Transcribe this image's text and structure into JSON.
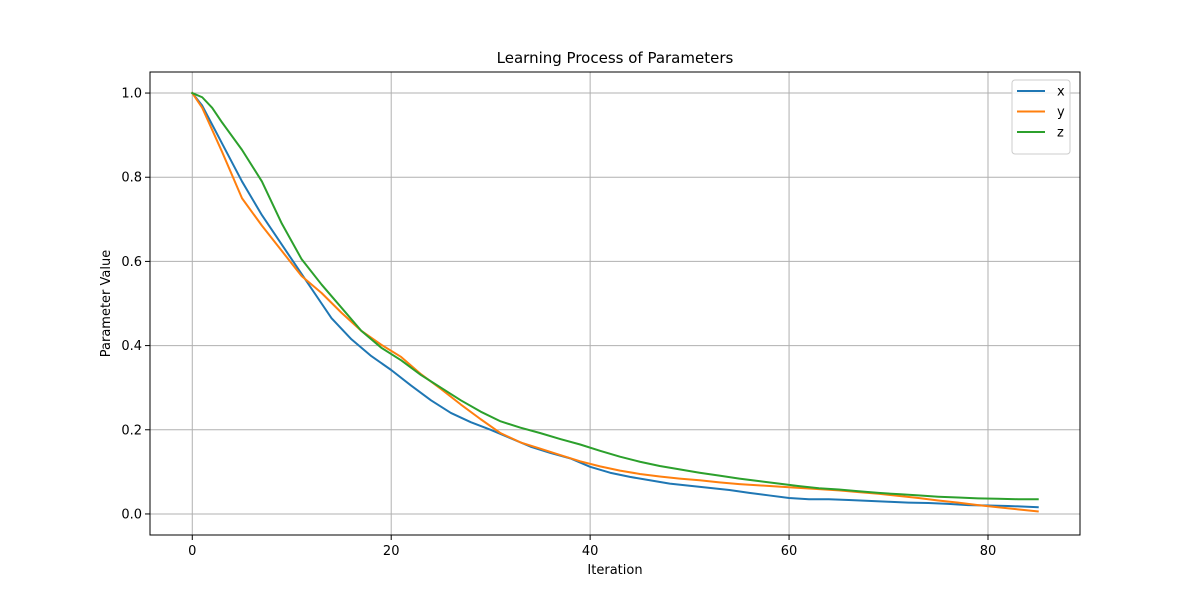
{
  "chart_data": {
    "type": "line",
    "title": "Learning Process of Parameters",
    "xlabel": "Iteration",
    "ylabel": "Parameter Value",
    "xlim": [
      -4.25,
      89.25
    ],
    "ylim": [
      -0.05,
      1.05
    ],
    "xticks": [
      0,
      20,
      40,
      60,
      80
    ],
    "yticks": [
      0.0,
      0.2,
      0.4,
      0.6,
      0.8,
      1.0
    ],
    "xtick_labels": [
      "0",
      "20",
      "40",
      "60",
      "80"
    ],
    "ytick_labels": [
      "0.0",
      "0.2",
      "0.4",
      "0.6",
      "0.8",
      "1.0"
    ],
    "grid": true,
    "legend_position": "top-right",
    "series": [
      {
        "name": "x",
        "color": "#1f77b4",
        "points": [
          [
            0,
            1.0
          ],
          [
            1,
            0.97
          ],
          [
            3,
            0.88
          ],
          [
            5,
            0.79
          ],
          [
            7,
            0.71
          ],
          [
            9,
            0.64
          ],
          [
            11,
            0.57
          ],
          [
            13,
            0.5
          ],
          [
            14,
            0.465
          ],
          [
            16,
            0.415
          ],
          [
            18,
            0.375
          ],
          [
            20,
            0.342
          ],
          [
            22,
            0.305
          ],
          [
            24,
            0.27
          ],
          [
            26,
            0.24
          ],
          [
            28,
            0.218
          ],
          [
            30,
            0.2
          ],
          [
            32,
            0.18
          ],
          [
            34,
            0.16
          ],
          [
            36,
            0.145
          ],
          [
            38,
            0.132
          ],
          [
            40,
            0.112
          ],
          [
            42,
            0.098
          ],
          [
            44,
            0.088
          ],
          [
            46,
            0.08
          ],
          [
            48,
            0.072
          ],
          [
            50,
            0.067
          ],
          [
            52,
            0.062
          ],
          [
            54,
            0.057
          ],
          [
            56,
            0.05
          ],
          [
            58,
            0.044
          ],
          [
            60,
            0.038
          ],
          [
            62,
            0.035
          ],
          [
            64,
            0.035
          ],
          [
            66,
            0.033
          ],
          [
            68,
            0.031
          ],
          [
            70,
            0.029
          ],
          [
            72,
            0.027
          ],
          [
            74,
            0.026
          ],
          [
            76,
            0.024
          ],
          [
            78,
            0.021
          ],
          [
            80,
            0.02
          ],
          [
            82,
            0.019
          ],
          [
            85,
            0.016
          ]
        ]
      },
      {
        "name": "y",
        "color": "#ff7f0e",
        "points": [
          [
            0,
            1.0
          ],
          [
            1,
            0.965
          ],
          [
            3,
            0.86
          ],
          [
            5,
            0.75
          ],
          [
            7,
            0.685
          ],
          [
            9,
            0.625
          ],
          [
            11,
            0.565
          ],
          [
            13,
            0.525
          ],
          [
            15,
            0.478
          ],
          [
            17,
            0.435
          ],
          [
            19,
            0.402
          ],
          [
            21,
            0.373
          ],
          [
            23,
            0.332
          ],
          [
            25,
            0.297
          ],
          [
            27,
            0.26
          ],
          [
            29,
            0.225
          ],
          [
            31,
            0.192
          ],
          [
            33,
            0.17
          ],
          [
            35,
            0.155
          ],
          [
            37,
            0.14
          ],
          [
            39,
            0.125
          ],
          [
            41,
            0.113
          ],
          [
            43,
            0.103
          ],
          [
            45,
            0.095
          ],
          [
            47,
            0.089
          ],
          [
            49,
            0.084
          ],
          [
            51,
            0.08
          ],
          [
            53,
            0.075
          ],
          [
            55,
            0.071
          ],
          [
            57,
            0.068
          ],
          [
            59,
            0.065
          ],
          [
            61,
            0.062
          ],
          [
            63,
            0.059
          ],
          [
            65,
            0.056
          ],
          [
            67,
            0.052
          ],
          [
            69,
            0.048
          ],
          [
            71,
            0.043
          ],
          [
            73,
            0.038
          ],
          [
            75,
            0.032
          ],
          [
            77,
            0.027
          ],
          [
            79,
            0.021
          ],
          [
            81,
            0.016
          ],
          [
            83,
            0.011
          ],
          [
            85,
            0.006
          ]
        ]
      },
      {
        "name": "z",
        "color": "#2ca02c",
        "points": [
          [
            0,
            1.0
          ],
          [
            1,
            0.99
          ],
          [
            2,
            0.965
          ],
          [
            3,
            0.93
          ],
          [
            5,
            0.865
          ],
          [
            7,
            0.79
          ],
          [
            9,
            0.69
          ],
          [
            11,
            0.605
          ],
          [
            13,
            0.545
          ],
          [
            15,
            0.49
          ],
          [
            17,
            0.435
          ],
          [
            19,
            0.395
          ],
          [
            21,
            0.365
          ],
          [
            23,
            0.33
          ],
          [
            25,
            0.3
          ],
          [
            27,
            0.27
          ],
          [
            29,
            0.243
          ],
          [
            31,
            0.22
          ],
          [
            33,
            0.205
          ],
          [
            35,
            0.192
          ],
          [
            37,
            0.178
          ],
          [
            39,
            0.165
          ],
          [
            41,
            0.15
          ],
          [
            43,
            0.136
          ],
          [
            45,
            0.124
          ],
          [
            47,
            0.114
          ],
          [
            49,
            0.106
          ],
          [
            51,
            0.098
          ],
          [
            53,
            0.091
          ],
          [
            55,
            0.084
          ],
          [
            57,
            0.078
          ],
          [
            59,
            0.072
          ],
          [
            61,
            0.066
          ],
          [
            63,
            0.061
          ],
          [
            65,
            0.058
          ],
          [
            67,
            0.054
          ],
          [
            69,
            0.05
          ],
          [
            71,
            0.047
          ],
          [
            73,
            0.044
          ],
          [
            75,
            0.041
          ],
          [
            77,
            0.039
          ],
          [
            79,
            0.037
          ],
          [
            81,
            0.036
          ],
          [
            83,
            0.035
          ],
          [
            85,
            0.035
          ]
        ]
      }
    ]
  }
}
